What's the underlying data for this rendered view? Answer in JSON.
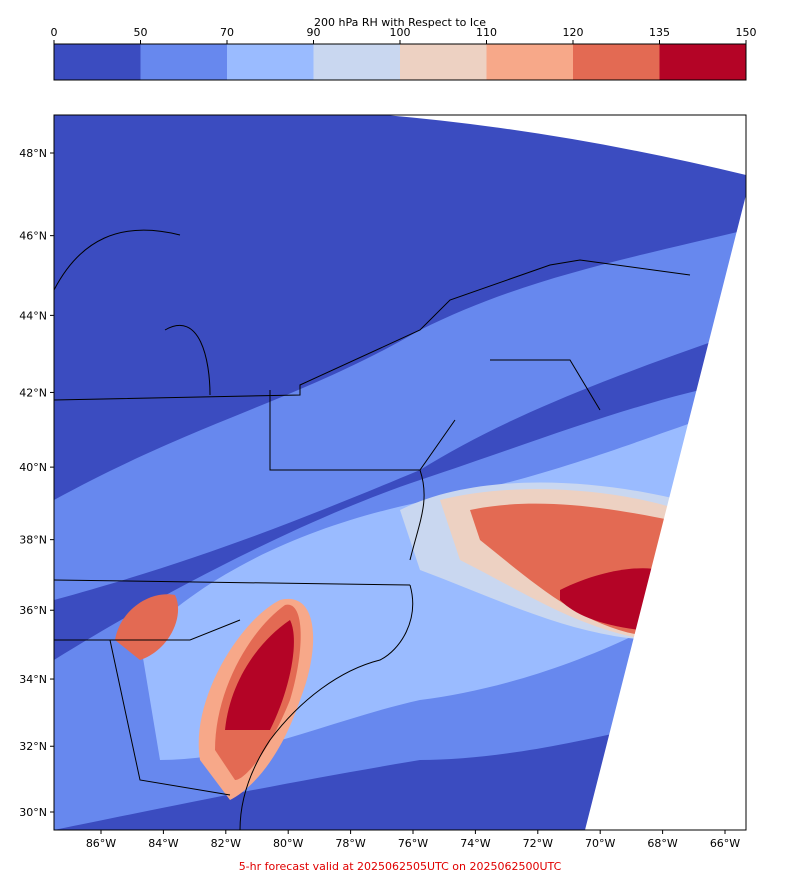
{
  "colorbar": {
    "title": "200 hPa RH with Respect to Ice",
    "ticks": [
      0,
      50,
      70,
      90,
      100,
      110,
      120,
      135,
      150
    ],
    "colors": [
      "#3b4cc0",
      "#6788ee",
      "#9abbff",
      "#c9d7f0",
      "#edd1c2",
      "#f7a889",
      "#e36a53",
      "#b40426"
    ]
  },
  "map": {
    "lat_ticks": [
      {
        "value": 30,
        "label": "30°N"
      },
      {
        "value": 32,
        "label": "32°N"
      },
      {
        "value": 34,
        "label": "34°N"
      },
      {
        "value": 36,
        "label": "36°N"
      },
      {
        "value": 38,
        "label": "38°N"
      },
      {
        "value": 40,
        "label": "40°N"
      },
      {
        "value": 42,
        "label": "42°N"
      },
      {
        "value": 44,
        "label": "44°N"
      },
      {
        "value": 46,
        "label": "46°N"
      },
      {
        "value": 48,
        "label": "48°N"
      }
    ],
    "lon_ticks": [
      {
        "value": -86,
        "label": "86°W"
      },
      {
        "value": -84,
        "label": "84°W"
      },
      {
        "value": -82,
        "label": "82°W"
      },
      {
        "value": -80,
        "label": "80°W"
      },
      {
        "value": -78,
        "label": "78°W"
      },
      {
        "value": -76,
        "label": "76°W"
      },
      {
        "value": -74,
        "label": "74°W"
      },
      {
        "value": -72,
        "label": "72°W"
      },
      {
        "value": -70,
        "label": "70°W"
      },
      {
        "value": -68,
        "label": "68°W"
      },
      {
        "value": -66,
        "label": "66°W"
      }
    ]
  },
  "footer": "5-hr forecast valid at 2025062505UTC on 2025062500UTC"
}
